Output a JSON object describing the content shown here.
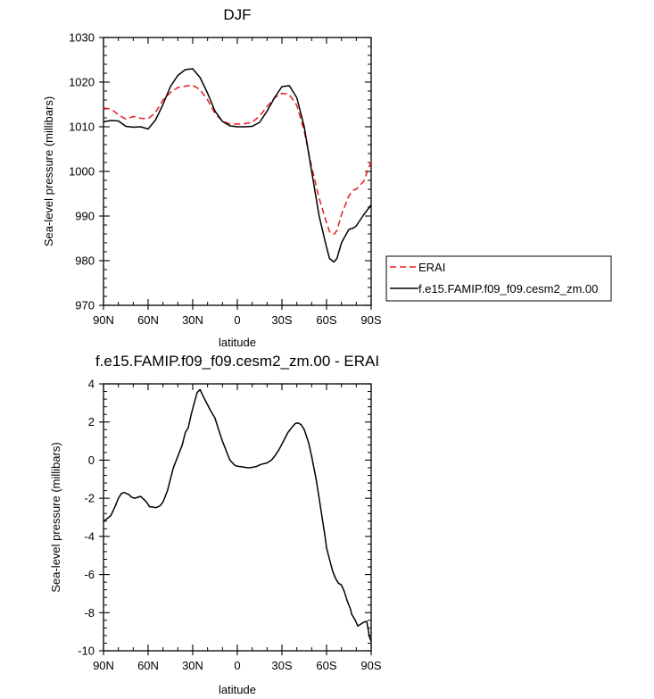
{
  "chart_data": [
    {
      "type": "line",
      "title": "DJF",
      "xlabel": "latitude",
      "ylabel": "Sea-level pressure (millibars)",
      "xlim": [
        90,
        -90
      ],
      "ylim": [
        970,
        1030
      ],
      "x_ticks": [
        90,
        60,
        30,
        0,
        -30,
        -60,
        -90
      ],
      "x_tick_labels": [
        "90N",
        "60N",
        "30N",
        "0",
        "30S",
        "60S",
        "90S"
      ],
      "y_ticks": [
        970,
        980,
        990,
        1000,
        1010,
        1020,
        1030
      ],
      "y_tick_labels": [
        "970",
        "980",
        "990",
        "1000",
        "1010",
        "1020",
        "1030"
      ],
      "grid": false,
      "legend_position": "right",
      "series": [
        {
          "name": "ERAI",
          "color": "#e8191f",
          "dash": "dashed",
          "x": [
            90,
            85,
            80,
            75,
            70,
            65,
            60,
            55,
            50,
            45,
            40,
            35,
            30,
            25,
            20,
            15,
            10,
            5,
            0,
            -5,
            -10,
            -15,
            -20,
            -25,
            -30,
            -35,
            -40,
            -45,
            -50,
            -55,
            -60,
            -62,
            -65,
            -67,
            -70,
            -75,
            -78,
            -80,
            -85,
            -90
          ],
          "y": [
            1014.2,
            1014.0,
            1012.7,
            1011.7,
            1012.3,
            1011.9,
            1011.8,
            1013.2,
            1016.0,
            1017.7,
            1018.8,
            1019.1,
            1019.3,
            1018.3,
            1016.0,
            1013.0,
            1011.3,
            1010.6,
            1010.6,
            1010.7,
            1011.0,
            1012.4,
            1014.5,
            1016.5,
            1017.5,
            1017.2,
            1014.8,
            1009.0,
            1001.0,
            994.0,
            988.5,
            986.5,
            985.9,
            986.8,
            990.3,
            994.5,
            995.8,
            996.0,
            997.8,
            1002.2
          ]
        },
        {
          "name": "f.e15.FAMIP.f09_f09.cesm2_zm.00",
          "color": "#000000",
          "dash": "solid",
          "x": [
            90,
            85,
            80,
            75,
            70,
            65,
            60,
            55,
            50,
            45,
            40,
            35,
            30,
            25,
            20,
            15,
            10,
            5,
            0,
            -5,
            -10,
            -15,
            -20,
            -25,
            -30,
            -35,
            -40,
            -45,
            -50,
            -55,
            -60,
            -62,
            -65,
            -67,
            -70,
            -75,
            -78,
            -80,
            -85,
            -90
          ],
          "y": [
            1011.1,
            1011.4,
            1011.3,
            1010.1,
            1009.9,
            1010.0,
            1009.5,
            1011.5,
            1015.0,
            1019.0,
            1021.5,
            1022.8,
            1023.0,
            1021.0,
            1017.5,
            1013.5,
            1011.2,
            1010.2,
            1010.0,
            1010.0,
            1010.1,
            1011.0,
            1013.5,
            1016.5,
            1019.0,
            1019.2,
            1016.5,
            1010.0,
            1000.0,
            990.0,
            983.0,
            980.5,
            979.7,
            980.5,
            984.0,
            987.0,
            987.3,
            987.8,
            990.3,
            992.5
          ]
        }
      ]
    },
    {
      "type": "line",
      "title": "f.e15.FAMIP.f09_f09.cesm2_zm.00 - ERAI",
      "xlabel": "latitude",
      "ylabel": "Sea-level pressure (millibars)",
      "xlim": [
        90,
        -90
      ],
      "ylim": [
        -10,
        4
      ],
      "x_ticks": [
        90,
        60,
        30,
        0,
        -30,
        -60,
        -90
      ],
      "x_tick_labels": [
        "90N",
        "60N",
        "30N",
        "0",
        "30S",
        "60S",
        "90S"
      ],
      "y_ticks": [
        -10,
        -8,
        -6,
        -4,
        -2,
        0,
        2,
        4
      ],
      "y_tick_labels": [
        "-10",
        "-8",
        "-6",
        "-4",
        "-2",
        "0",
        "2",
        "4"
      ],
      "grid": false,
      "series": [
        {
          "color": "#000000",
          "dash": "solid",
          "x": [
            90,
            88,
            85,
            82,
            80,
            78,
            76,
            73,
            71,
            69,
            67,
            65,
            63,
            61,
            59,
            57,
            55,
            52,
            50,
            47,
            45,
            43,
            40,
            37,
            35,
            33,
            31,
            29,
            27,
            25,
            23,
            20,
            18,
            15,
            13,
            10,
            7,
            5,
            2,
            0,
            -3,
            -5,
            -8,
            -10,
            -13,
            -15,
            -17,
            -20,
            -23,
            -25,
            -28,
            -31,
            -34,
            -37,
            -39,
            -41,
            -43,
            -45,
            -48,
            -50,
            -53,
            -55,
            -57,
            -59,
            -60,
            -62,
            -64,
            -66,
            -68,
            -70,
            -72,
            -74,
            -76,
            -77,
            -79,
            -81,
            -83,
            -85,
            -87,
            -88,
            -89,
            -90
          ],
          "y": [
            -3.2,
            -3.1,
            -2.9,
            -2.4,
            -2.0,
            -1.75,
            -1.7,
            -1.8,
            -1.95,
            -2.0,
            -1.95,
            -1.9,
            -2.05,
            -2.2,
            -2.45,
            -2.45,
            -2.5,
            -2.4,
            -2.2,
            -1.6,
            -1.0,
            -0.4,
            0.2,
            0.8,
            1.45,
            1.7,
            2.4,
            3.0,
            3.55,
            3.7,
            3.35,
            2.9,
            2.6,
            2.2,
            1.7,
            1.0,
            0.4,
            0.0,
            -0.25,
            -0.32,
            -0.35,
            -0.38,
            -0.4,
            -0.38,
            -0.33,
            -0.25,
            -0.2,
            -0.15,
            0.0,
            0.2,
            0.55,
            1.0,
            1.45,
            1.75,
            1.92,
            1.95,
            1.85,
            1.6,
            0.9,
            0.2,
            -1.0,
            -2.0,
            -3.0,
            -4.0,
            -4.6,
            -5.2,
            -5.8,
            -6.2,
            -6.45,
            -6.55,
            -6.9,
            -7.4,
            -7.8,
            -8.1,
            -8.35,
            -8.7,
            -8.6,
            -8.5,
            -8.45,
            -8.9,
            -9.3,
            -9.5
          ]
        }
      ]
    }
  ]
}
